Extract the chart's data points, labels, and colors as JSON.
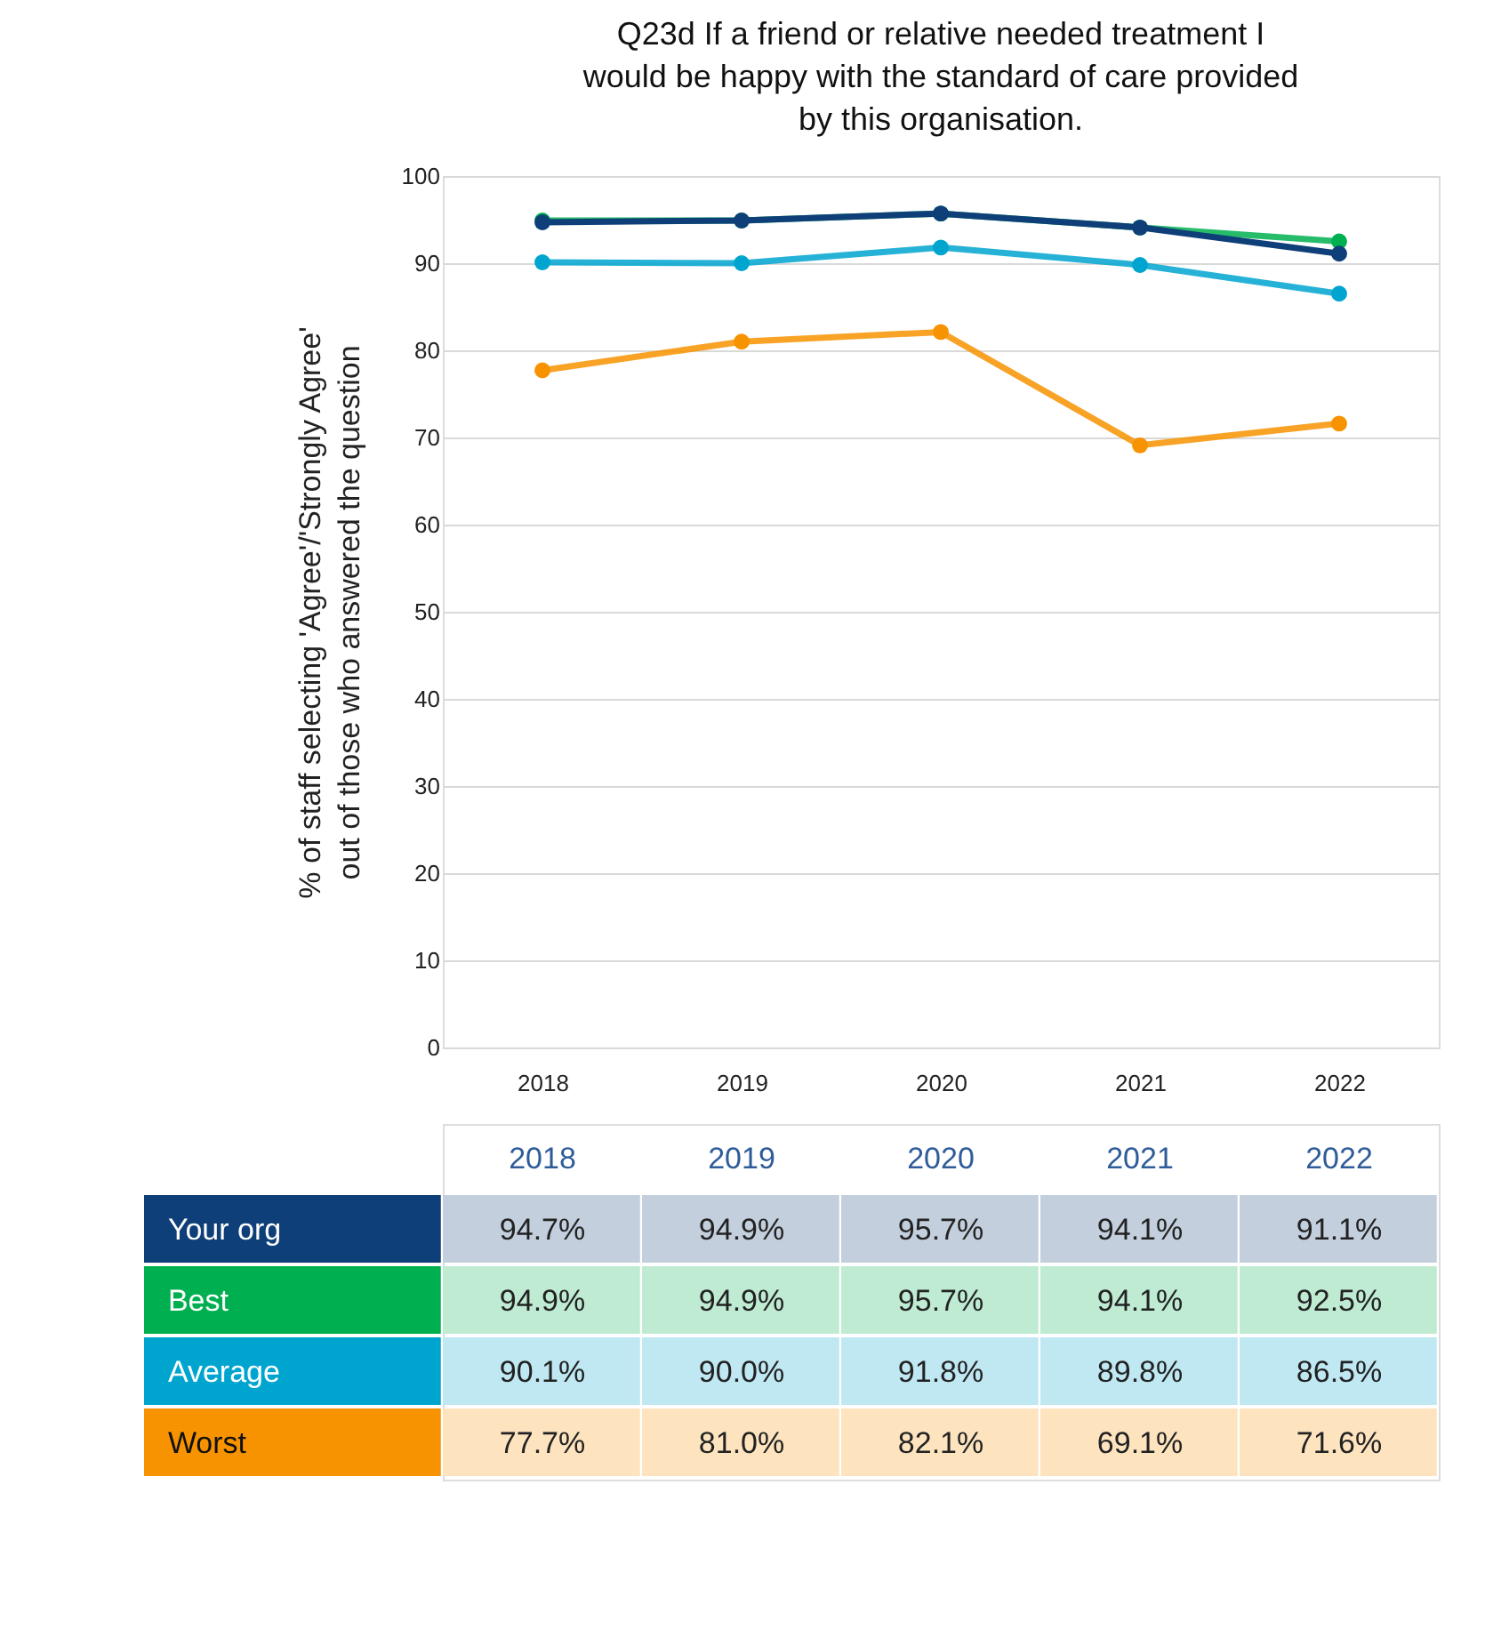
{
  "chart_data": {
    "type": "line",
    "title": "Q23d If a friend or relative needed treatment I would be happy with the standard of care provided by this organisation.",
    "ylabel": "% of staff selecting 'Agree'/'Strongly Agree' out of those who answered the question",
    "categories": [
      "2018",
      "2019",
      "2020",
      "2021",
      "2022"
    ],
    "ylim": [
      0,
      100
    ],
    "yticks": [
      0,
      10,
      20,
      30,
      40,
      50,
      60,
      70,
      80,
      90,
      100
    ],
    "grid": "y",
    "legend": false,
    "marker": "circle",
    "line_style": "solid",
    "series": [
      {
        "name": "Your org",
        "color": "#0e3f78",
        "values": [
          94.7,
          94.9,
          95.7,
          94.1,
          91.1
        ],
        "value_labels": [
          "94.7%",
          "94.9%",
          "95.7%",
          "94.1%",
          "91.1%"
        ]
      },
      {
        "name": "Best",
        "color": "#00b050",
        "values": [
          94.9,
          94.9,
          95.7,
          94.1,
          92.5
        ],
        "value_labels": [
          "94.9%",
          "94.9%",
          "95.7%",
          "94.1%",
          "92.5%"
        ]
      },
      {
        "name": "Average",
        "color": "#00a5cf",
        "values": [
          90.1,
          90.0,
          91.8,
          89.8,
          86.5
        ],
        "value_labels": [
          "90.1%",
          "90.0%",
          "91.8%",
          "89.8%",
          "86.5%"
        ]
      },
      {
        "name": "Worst",
        "color": "#f79300",
        "values": [
          77.7,
          81.0,
          82.1,
          69.1,
          71.6
        ],
        "value_labels": [
          "77.7%",
          "81.0%",
          "82.1%",
          "69.1%",
          "71.6%"
        ]
      }
    ]
  }
}
